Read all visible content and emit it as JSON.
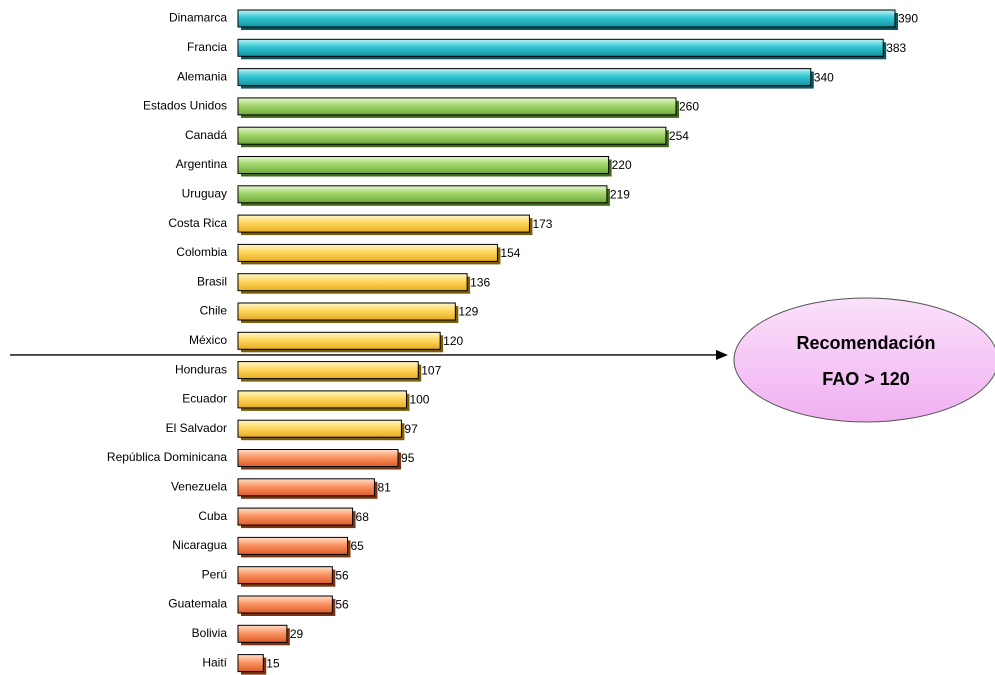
{
  "chart_data": {
    "type": "bar",
    "orientation": "horizontal",
    "categories": [
      "Dinamarca",
      "Francia",
      "Alemania",
      "Estados Unidos",
      "Canadá",
      "Argentina",
      "Uruguay",
      "Costa Rica",
      "Colombia",
      "Brasil",
      "Chile",
      "México",
      "Honduras",
      "Ecuador",
      "El Salvador",
      "República Dominicana",
      "Venezuela",
      "Cuba",
      "Nicaragua",
      "Perú",
      "Guatemala",
      "Bolivia",
      "Haití"
    ],
    "values": [
      390,
      383,
      340,
      260,
      254,
      220,
      219,
      173,
      154,
      136,
      129,
      120,
      107,
      100,
      97,
      95,
      81,
      68,
      65,
      56,
      56,
      29,
      15
    ],
    "value_labels": [
      "390",
      "383",
      "340",
      "260",
      "254",
      "220",
      "219",
      "173",
      "154",
      "136",
      "129",
      "120",
      "107",
      "100",
      "97",
      "95",
      "81",
      "68",
      "65",
      "56",
      "56",
      "29",
      "15"
    ],
    "xlim": [
      0,
      390
    ],
    "grid": false,
    "legend": "none",
    "color_groups": [
      {
        "from": 0,
        "to": 2,
        "color": "#33c7d3",
        "shadow": "#0d5560"
      },
      {
        "from": 3,
        "to": 6,
        "color": "#a2d66a",
        "shadow": "#3f6a1e"
      },
      {
        "from": 7,
        "to": 14,
        "color": "#ffd75e",
        "shadow": "#7a5c0a"
      },
      {
        "from": 15,
        "to": 22,
        "color": "#fb9563",
        "shadow": "#7a3412"
      }
    ],
    "reference_line": {
      "value": 120,
      "category_after": "México"
    },
    "callout": {
      "line1": "Recomendación",
      "line2": "FAO > 120",
      "fill": "#f6c6f7",
      "stroke": "#555555"
    }
  }
}
